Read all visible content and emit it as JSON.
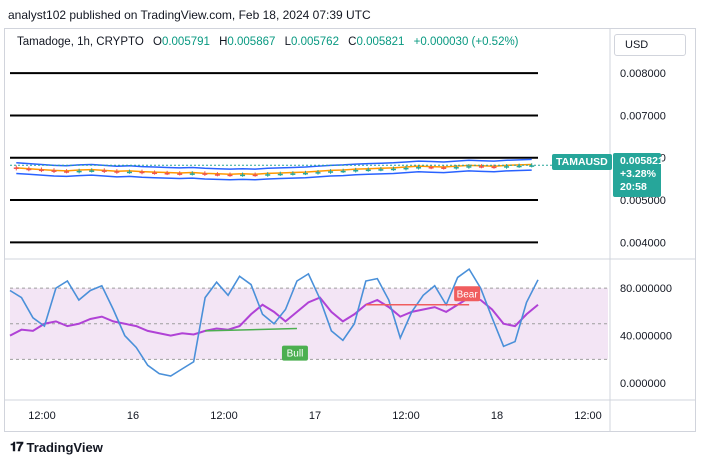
{
  "header": {
    "publisher_line": "analyst102 published on TradingView.com, Feb 18, 2024 07:39 UTC"
  },
  "legend": {
    "symbol": "Tamadoge, 1h, CRYPTO",
    "open_label": "O",
    "open": "0.005791",
    "high_label": "H",
    "high": "0.005867",
    "low_label": "L",
    "low": "0.005762",
    "close_label": "C",
    "close": "0.005821",
    "change": "+0.000030 (+0.52%)"
  },
  "currency_button": "USD",
  "price_tag": {
    "ticker": "TAMAUSD",
    "price": "0.005821",
    "change_pct": "+3.28%",
    "countdown": "20:58"
  },
  "footer": {
    "brand": "TradingView"
  },
  "colors": {
    "up": "#26a69a",
    "down": "#ef5350",
    "bb": "#2962ff",
    "ma": "#ff9800",
    "stoch_k": "#4a90d9",
    "stoch_d": "#b042d6",
    "band_fill": "#f3e5f5"
  },
  "chart_data": [
    {
      "type": "candlestick",
      "title": "Tamadoge, 1h, CRYPTO",
      "y_tick_labels": [
        "0.008000",
        "0.007000",
        "0.006000",
        "0.005000",
        "0.004000"
      ],
      "ylim": [
        0.0037,
        0.0085
      ],
      "horizontal_levels": [
        0.008,
        0.007,
        0.006,
        0.005,
        0.004
      ],
      "x_tick_labels": [
        "12:00",
        "16",
        "12:00",
        "17",
        "12:00",
        "18",
        "12:00"
      ],
      "close_series": [
        0.00574,
        0.00572,
        0.0057,
        0.00568,
        0.00567,
        0.00569,
        0.0057,
        0.00568,
        0.00566,
        0.00567,
        0.00565,
        0.00564,
        0.00563,
        0.00562,
        0.00563,
        0.00561,
        0.0056,
        0.00559,
        0.0056,
        0.00559,
        0.00561,
        0.00562,
        0.00563,
        0.00564,
        0.00566,
        0.00568,
        0.00569,
        0.00571,
        0.00572,
        0.00573,
        0.00574,
        0.00576,
        0.00578,
        0.00577,
        0.00576,
        0.00578,
        0.0058,
        0.00579,
        0.00578,
        0.0058,
        0.00581,
        0.00582
      ],
      "bollinger": {
        "upper_offset": 0.00014,
        "lower_offset": 0.00014
      },
      "last_price": 0.005821
    },
    {
      "type": "line",
      "title": "Stochastic RSI",
      "y_tick_labels": [
        "80.000000",
        "40.000000",
        "0.000000"
      ],
      "ylim": [
        -10,
        102
      ],
      "band": [
        20,
        80
      ],
      "series": [
        {
          "values": [
            78,
            72,
            55,
            48,
            80,
            86,
            70,
            78,
            82,
            62,
            40,
            30,
            15,
            8,
            6,
            12,
            18,
            72,
            85,
            74,
            90,
            83,
            58,
            50,
            62,
            86,
            92,
            71,
            44,
            36,
            50,
            86,
            88,
            70,
            38,
            60,
            74,
            82,
            66,
            89,
            96,
            80,
            55,
            31,
            35,
            68,
            87
          ]
        },
        {
          "values": [
            40,
            45,
            44,
            50,
            52,
            48,
            50,
            54,
            56,
            52,
            50,
            48,
            44,
            42,
            40,
            42,
            41,
            44,
            46,
            45,
            48,
            58,
            66,
            60,
            52,
            60,
            68,
            72,
            60,
            52,
            58,
            66,
            70,
            64,
            56,
            60,
            62,
            64,
            60,
            66,
            72,
            70,
            62,
            50,
            48,
            58,
            66
          ]
        }
      ],
      "annotations": [
        {
          "text": "Bull",
          "color": "#4caf50"
        },
        {
          "text": "Bear",
          "color": "#f05d5e"
        }
      ]
    }
  ]
}
